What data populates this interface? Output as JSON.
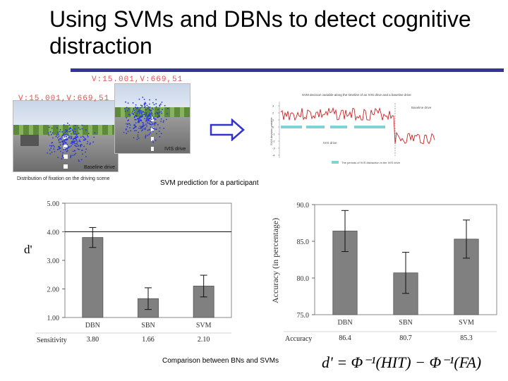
{
  "slide": {
    "title": "Using SVMs and DBNs to detect cognitive distraction",
    "accent_color": "#33339a"
  },
  "screenshots": {
    "hud_text_1": "V:15.001,V:669,51",
    "hud_text_2": "V:15.001,V:669,51",
    "ivis_label": "IVIS drive",
    "baseline_label": "Baseline drive",
    "caption": "Distribution of fixation on the driving scene"
  },
  "arrow": {
    "icon": "right-arrow-icon",
    "color": "#3333cc"
  },
  "svm_panel": {
    "caption": "SVM prediction for a participant",
    "top_label": "SVM decision variable along the timeline of an IVIS drive and a baseline drive",
    "ylabel": "SVM decision variable",
    "ivis_label": "IVIS drive",
    "baseline_label": "Baseline drive",
    "legend": "The periods of IVIS distraction in the IVIS drive",
    "yticks": [
      "3",
      "2",
      "1",
      "0",
      "-1",
      "-2",
      "-3",
      "-4"
    ]
  },
  "chart_data": [
    {
      "type": "bar",
      "categories": [
        "DBN",
        "SBN",
        "SVM"
      ],
      "values": [
        3.8,
        1.66,
        2.1
      ],
      "ylabel": "d'",
      "yticks": [
        "5.00",
        "4.00",
        "3.00",
        "2.00",
        "1.00"
      ],
      "ylim": [
        1.0,
        5.0
      ],
      "table_label": "Sensitivity",
      "table_values": [
        "3.80",
        "1.66",
        "2.10"
      ],
      "color": "#808080"
    },
    {
      "type": "bar",
      "categories": [
        "DBN",
        "SBN",
        "SVM"
      ],
      "values": [
        86.4,
        80.7,
        85.3
      ],
      "ylabel": "Accuracy (in percentage)",
      "yticks": [
        "90.0",
        "85.0",
        "80.0",
        "75.0"
      ],
      "ylim": [
        75.0,
        90.0
      ],
      "table_label": "Accuracy",
      "table_values": [
        "86.4",
        "80.7",
        "85.3"
      ],
      "color": "#808080"
    }
  ],
  "bottom": {
    "caption": "Comparison between BNs and SVMs",
    "formula": "d' = Φ⁻¹(HIT) − Φ⁻¹(FA)"
  }
}
